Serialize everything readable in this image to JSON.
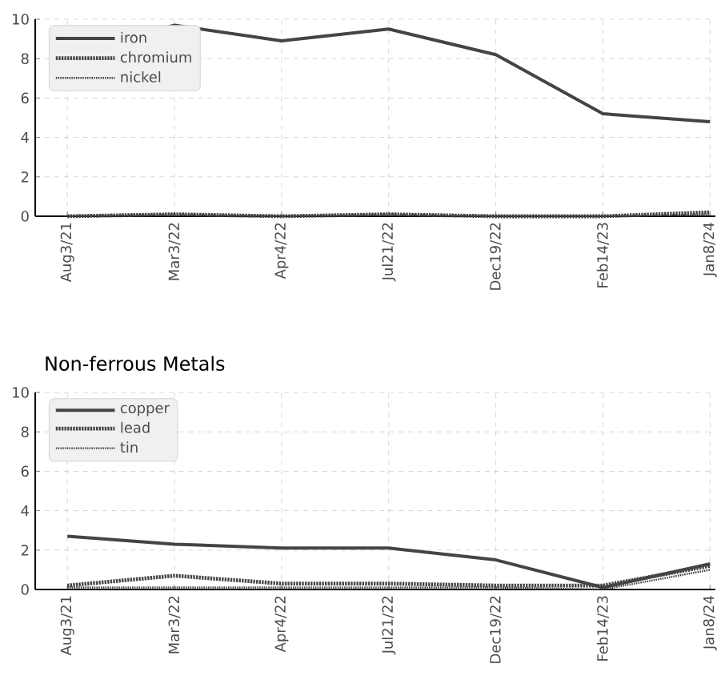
{
  "chart_data": [
    {
      "type": "line",
      "categories": [
        "Aug3/21",
        "Mar3/22",
        "Apr4/22",
        "Jul21/22",
        "Dec19/22",
        "Feb14/23",
        "Jan8/24"
      ],
      "ylim": [
        0,
        10
      ],
      "yticks": [
        0,
        2,
        4,
        6,
        8,
        10
      ],
      "grid": true,
      "legend": "top left",
      "series": [
        {
          "name": "iron",
          "color": "#444444",
          "line_style": "solid",
          "values": [
            8.2,
            9.7,
            8.9,
            9.5,
            8.2,
            5.2,
            4.8
          ]
        },
        {
          "name": "chromium",
          "color": "#444444",
          "line_style": "dashed",
          "values": [
            0,
            0.1,
            0,
            0.1,
            0,
            0,
            0.2
          ]
        },
        {
          "name": "nickel",
          "color": "#444444",
          "line_style": "dotted",
          "values": [
            0,
            0.1,
            0,
            0.1,
            0,
            0,
            0.1
          ]
        }
      ]
    },
    {
      "type": "line",
      "title": "Non-ferrous Metals",
      "categories": [
        "Aug3/21",
        "Mar3/22",
        "Apr4/22",
        "Jul21/22",
        "Dec19/22",
        "Feb14/23",
        "Jan8/24"
      ],
      "ylim": [
        0,
        10
      ],
      "yticks": [
        0,
        2,
        4,
        6,
        8,
        10
      ],
      "grid": true,
      "legend": "top left",
      "series": [
        {
          "name": "copper",
          "color": "#444444",
          "line_style": "solid",
          "values": [
            2.7,
            2.3,
            2.1,
            2.1,
            1.5,
            0.1,
            1.3
          ]
        },
        {
          "name": "lead",
          "color": "#444444",
          "line_style": "dashed",
          "values": [
            0.2,
            0.7,
            0.3,
            0.3,
            0.2,
            0.2,
            1.2
          ]
        },
        {
          "name": "tin",
          "color": "#444444",
          "line_style": "dotted",
          "values": [
            0.1,
            0.1,
            0.1,
            0.1,
            0.1,
            0,
            1.0
          ]
        }
      ]
    }
  ]
}
